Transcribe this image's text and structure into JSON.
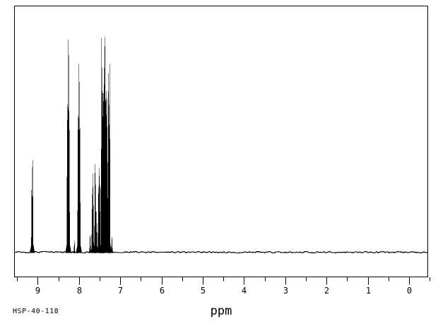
{
  "meta": {
    "sample_id": "HSP-40-118",
    "background_color": "#ffffff",
    "trace_color": "#000000"
  },
  "chart_data": {
    "type": "line",
    "subtype": "1H-NMR spectrum",
    "title": "",
    "xlabel": "ppm",
    "ylabel": "",
    "x_axis": {
      "min": -0.46,
      "max": 9.57,
      "direction": "reversed",
      "major_ticks": [
        9,
        8,
        7,
        6,
        5,
        4,
        3,
        2,
        1,
        0
      ],
      "minor_ticks": [
        9.5,
        8.5,
        7.5,
        6.5,
        5.5,
        4.5,
        3.5,
        2.5,
        1.5,
        0.5,
        -0.5
      ],
      "grid": false
    },
    "main_peaks_ppm": [
      9.13,
      8.27,
      8.25,
      8.01,
      7.99,
      7.66,
      7.61,
      7.51,
      7.45,
      7.38,
      7.28,
      7.26
    ],
    "peaks": [
      [
        9.14,
        0.38
      ],
      [
        9.12,
        0.41
      ],
      [
        8.28,
        0.66
      ],
      [
        8.265,
        0.95
      ],
      [
        8.25,
        0.88
      ],
      [
        8.235,
        0.66
      ],
      [
        8.11,
        0.05
      ],
      [
        8.02,
        0.65
      ],
      [
        8.007,
        0.84
      ],
      [
        7.99,
        0.76
      ],
      [
        7.978,
        0.59
      ],
      [
        7.73,
        0.08
      ],
      [
        7.68,
        0.2
      ],
      [
        7.667,
        0.35
      ],
      [
        7.655,
        0.29
      ],
      [
        7.61,
        0.42
      ],
      [
        7.597,
        0.3
      ],
      [
        7.57,
        0.18
      ],
      [
        7.524,
        0.31
      ],
      [
        7.507,
        0.4
      ],
      [
        7.495,
        0.3
      ],
      [
        7.46,
        0.46
      ],
      [
        7.448,
        1.0
      ],
      [
        7.436,
        0.72
      ],
      [
        7.424,
        0.71
      ],
      [
        7.412,
        0.72
      ],
      [
        7.4,
        0.71
      ],
      [
        7.388,
        0.78
      ],
      [
        7.378,
        0.98
      ],
      [
        7.364,
        0.96
      ],
      [
        7.352,
        0.72
      ],
      [
        7.339,
        0.72
      ],
      [
        7.327,
        0.73
      ],
      [
        7.313,
        0.56
      ],
      [
        7.284,
        0.85
      ],
      [
        7.269,
        0.69
      ],
      [
        7.255,
        0.84
      ],
      [
        7.2,
        0.07
      ]
    ],
    "peak_height_note": "heights are fractions of tallest peak (7.45 ppm multiplet)",
    "baseline": 0,
    "legend": null
  }
}
